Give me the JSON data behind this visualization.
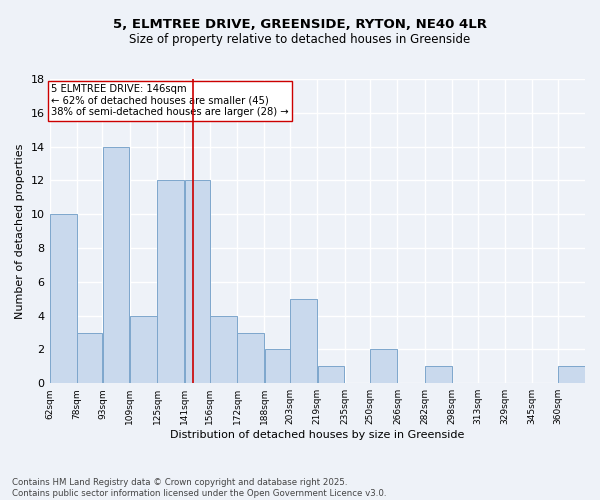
{
  "title_line1": "5, ELMTREE DRIVE, GREENSIDE, RYTON, NE40 4LR",
  "title_line2": "Size of property relative to detached houses in Greenside",
  "xlabel": "Distribution of detached houses by size in Greenside",
  "ylabel": "Number of detached properties",
  "footnote1": "Contains HM Land Registry data © Crown copyright and database right 2025.",
  "footnote2": "Contains public sector information licensed under the Open Government Licence v3.0.",
  "bar_edges": [
    62,
    78,
    93,
    109,
    125,
    141,
    156,
    172,
    188,
    203,
    219,
    235,
    250,
    266,
    282,
    298,
    313,
    329,
    345,
    360,
    376
  ],
  "bar_heights": [
    10,
    3,
    14,
    4,
    12,
    12,
    4,
    3,
    2,
    5,
    1,
    0,
    2,
    0,
    1,
    0,
    0,
    0,
    0,
    1
  ],
  "property_line_x": 146,
  "annotation_text": "5 ELMTREE DRIVE: 146sqm\n← 62% of detached houses are smaller (45)\n38% of semi-detached houses are larger (28) →",
  "bar_color": "#c9d9ed",
  "bar_edgecolor": "#7da6cc",
  "line_color": "#cc0000",
  "annotation_boxcolor": "#ffffff",
  "annotation_edgecolor": "#cc0000",
  "bg_color": "#eef2f8",
  "ylim": [
    0,
    18
  ],
  "yticks": [
    0,
    2,
    4,
    6,
    8,
    10,
    12,
    14,
    16,
    18
  ]
}
